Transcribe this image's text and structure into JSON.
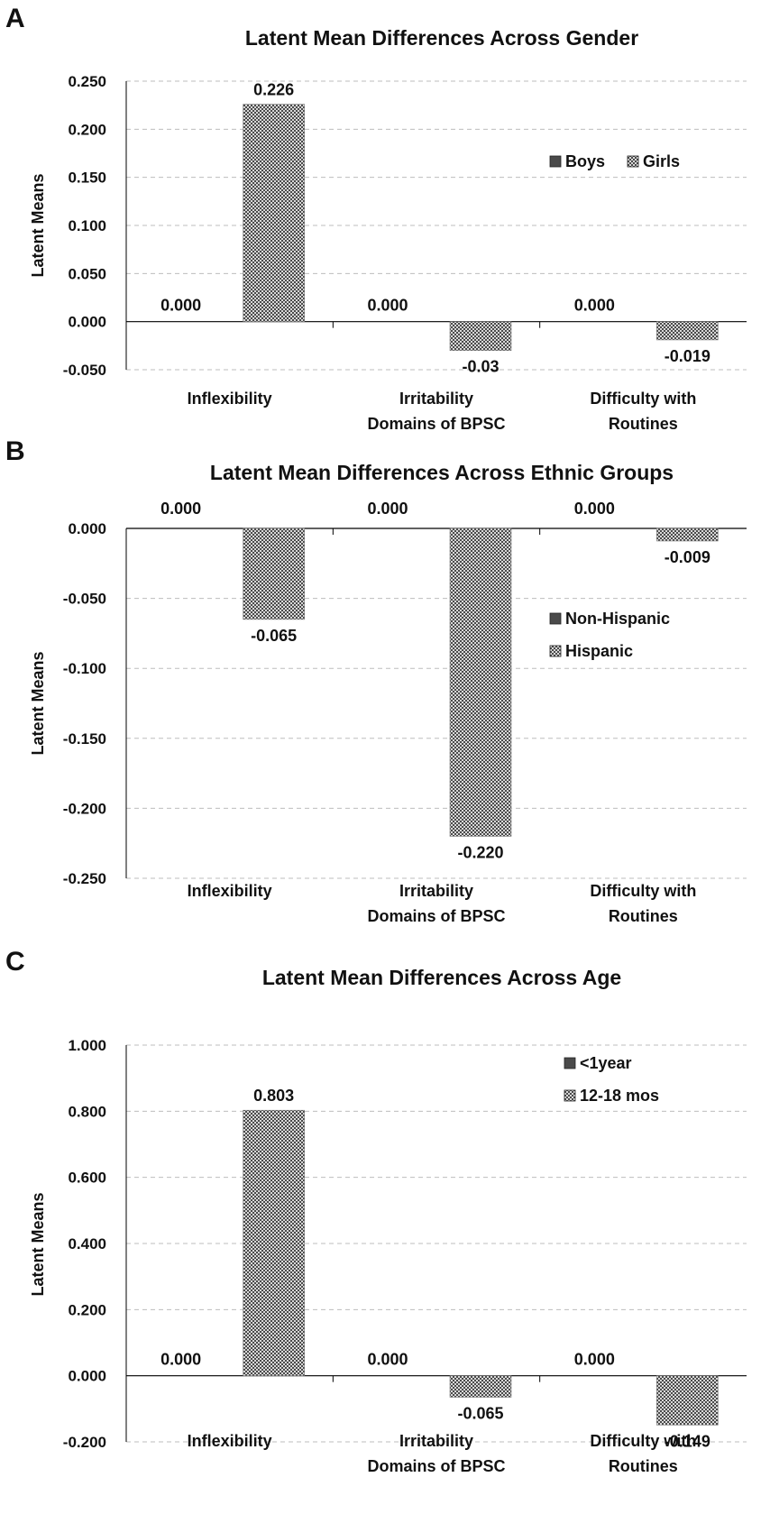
{
  "colors": {
    "bar_fill": "#4a4a4a",
    "bar_stripe": "#d8d8d8",
    "axis": "#000000",
    "grid": "#bdbdbd",
    "text": "#111111"
  },
  "panels": [
    {
      "letter": "A"
    },
    {
      "letter": "B"
    },
    {
      "letter": "C"
    }
  ],
  "chart_data": [
    {
      "type": "bar",
      "title": "Latent Mean Differences Across Gender",
      "ylabel": "Latent Means",
      "xlabel": "Domains of BPSC",
      "categories": [
        "Inflexibility",
        "Irritability",
        "Difficulty with Routines"
      ],
      "category_lines": [
        [
          "Inflexibility"
        ],
        [
          "Irritability"
        ],
        [
          "Difficulty with",
          "Routines"
        ]
      ],
      "series": [
        {
          "name": "Boys",
          "values": [
            0.0,
            0.0,
            0.0
          ],
          "labels": [
            "0.000",
            "0.000",
            "0.000"
          ]
        },
        {
          "name": "Girls",
          "values": [
            0.226,
            -0.03,
            -0.019
          ],
          "labels": [
            "0.226",
            "-0.03",
            "-0.019"
          ]
        }
      ],
      "ylim": [
        -0.05,
        0.25
      ],
      "yticks": [
        -0.05,
        0.0,
        0.05,
        0.1,
        0.15,
        0.2,
        0.25
      ],
      "ytick_labels": [
        "-0.050",
        "0.000",
        "0.050",
        "0.100",
        "0.150",
        "0.200",
        "0.250"
      ],
      "legend": "right, horizontal",
      "grid": true
    },
    {
      "type": "bar",
      "title": "Latent Mean Differences Across  Ethnic Groups",
      "ylabel": "Latent Means",
      "xlabel": "Domains of BPSC",
      "categories": [
        "Inflexibility",
        "Irritability",
        "Difficulty with Routines"
      ],
      "category_lines": [
        [
          "Inflexibility"
        ],
        [
          "Irritability"
        ],
        [
          "Difficulty with",
          "Routines"
        ]
      ],
      "series": [
        {
          "name": "Non-Hispanic",
          "values": [
            0.0,
            0.0,
            0.0
          ],
          "labels": [
            "0.000",
            "0.000",
            "0.000"
          ]
        },
        {
          "name": "Hispanic",
          "values": [
            -0.065,
            -0.22,
            -0.009
          ],
          "labels": [
            "-0.065",
            "-0.220",
            "-0.009"
          ]
        }
      ],
      "ylim": [
        -0.25,
        0.0
      ],
      "yticks": [
        -0.25,
        -0.2,
        -0.15,
        -0.1,
        -0.05,
        0.0
      ],
      "ytick_labels": [
        "-0.250",
        "-0.200",
        "-0.150",
        "-0.100",
        "-0.050",
        "0.000"
      ],
      "legend": "right, vertical",
      "grid": true
    },
    {
      "type": "bar",
      "title": "Latent Mean Differences Across Age",
      "ylabel": "Latent Means",
      "xlabel": "Domains of BPSC",
      "categories": [
        "Inflexibility",
        "Irritability",
        "Difficulty with Routines"
      ],
      "category_lines": [
        [
          "Inflexibility"
        ],
        [
          "Irritability"
        ],
        [
          "Difficulty with",
          "Routines"
        ]
      ],
      "series": [
        {
          "name": "<1year",
          "values": [
            0.0,
            0.0,
            0.0
          ],
          "labels": [
            "0.000",
            "0.000",
            "0.000"
          ]
        },
        {
          "name": "12-18 mos",
          "values": [
            0.803,
            -0.065,
            -0.149
          ],
          "labels": [
            "0.803",
            "-0.065",
            "-0.149"
          ]
        }
      ],
      "ylim": [
        -0.2,
        1.0
      ],
      "yticks": [
        -0.2,
        0.0,
        0.2,
        0.4,
        0.6,
        0.8,
        1.0
      ],
      "ytick_labels": [
        "-0.200",
        "0.000",
        "0.200",
        "0.400",
        "0.600",
        "0.800",
        "1.000"
      ],
      "legend": "right, vertical",
      "grid": true
    }
  ]
}
